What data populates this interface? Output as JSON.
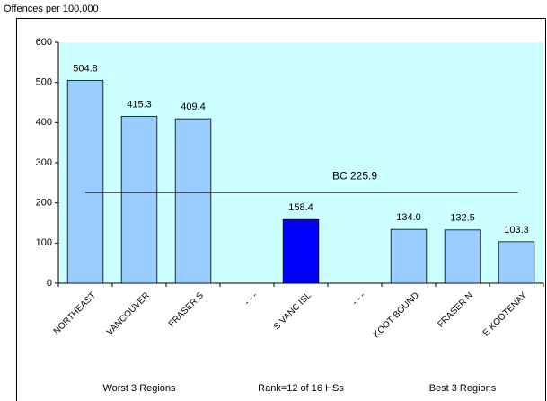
{
  "chart_data": {
    "type": "bar",
    "y_label": "Offences per 100,000",
    "categories": [
      "NORTHEAST",
      "VANCOUVER",
      "FRASER S",
      "- - -",
      "S VANC ISL",
      "- - -",
      "KOOT BOUND",
      "FRASER N",
      "E KOOTENAY"
    ],
    "values": [
      504.8,
      415.3,
      409.4,
      null,
      158.4,
      null,
      134.0,
      132.5,
      103.3
    ],
    "value_labels": [
      "504.8",
      "415.3",
      "409.4",
      null,
      "158.4",
      null,
      "134.0",
      "132.5",
      "103.3"
    ],
    "colors": [
      "#99ccff",
      "#99ccff",
      "#99ccff",
      null,
      "#0000ff",
      null,
      "#99ccff",
      "#99ccff",
      "#99ccff"
    ],
    "ylim": [
      0,
      600
    ],
    "yticks": [
      0,
      100,
      200,
      300,
      400,
      500,
      600
    ],
    "reference_line": {
      "value": 225.9,
      "label": "BC 225.9"
    },
    "footnotes": [
      "Worst 3 Regions",
      "Rank=12 of 16 HSs",
      "Best 3 Regions"
    ],
    "plot_background": "#ccffff"
  }
}
